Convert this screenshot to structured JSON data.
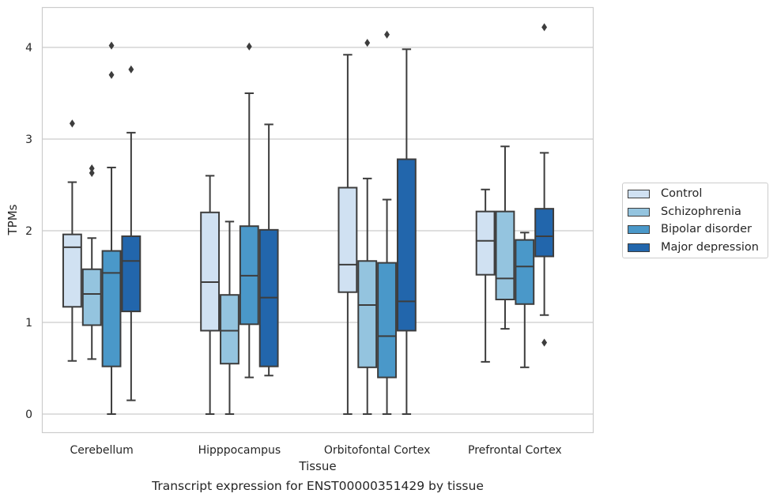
{
  "chart_data": {
    "type": "box",
    "title": "",
    "caption": "Transcript expression for ENST00000351429 by tissue",
    "xlabel": "Tissue",
    "ylabel": "TPMs",
    "ylim": [
      -0.2,
      4.45
    ],
    "yticks": [
      0,
      1,
      2,
      3,
      4
    ],
    "grid": "horizontal",
    "legend_position": "right",
    "categories": [
      "Cerebellum",
      "Hipppocampus",
      "Orbitofontal Cortex",
      "Prefrontal Cortex"
    ],
    "series": [
      {
        "name": "Control",
        "color": "#d0e1f2",
        "boxes": [
          {
            "whisker_low": 0.58,
            "q1": 1.17,
            "median": 1.82,
            "q3": 1.96,
            "whisker_high": 2.53,
            "outliers": [
              3.17
            ]
          },
          {
            "whisker_low": 0.0,
            "q1": 0.91,
            "median": 1.44,
            "q3": 2.2,
            "whisker_high": 2.6,
            "outliers": []
          },
          {
            "whisker_low": 0.0,
            "q1": 1.33,
            "median": 1.63,
            "q3": 2.47,
            "whisker_high": 3.92,
            "outliers": []
          },
          {
            "whisker_low": 0.57,
            "q1": 1.52,
            "median": 1.89,
            "q3": 2.21,
            "whisker_high": 2.45,
            "outliers": []
          }
        ]
      },
      {
        "name": "Schizophrenia",
        "color": "#94c4df",
        "boxes": [
          {
            "whisker_low": 0.6,
            "q1": 0.97,
            "median": 1.31,
            "q3": 1.58,
            "whisker_high": 1.92,
            "outliers": [
              2.63,
              2.68
            ]
          },
          {
            "whisker_low": 0.0,
            "q1": 0.55,
            "median": 0.91,
            "q3": 1.3,
            "whisker_high": 2.1,
            "outliers": []
          },
          {
            "whisker_low": 0.0,
            "q1": 0.51,
            "median": 1.19,
            "q3": 1.67,
            "whisker_high": 2.57,
            "outliers": [
              4.05
            ]
          },
          {
            "whisker_low": 0.93,
            "q1": 1.25,
            "median": 1.48,
            "q3": 2.21,
            "whisker_high": 2.92,
            "outliers": []
          }
        ]
      },
      {
        "name": "Bipolar disorder",
        "color": "#4a98c9",
        "boxes": [
          {
            "whisker_low": 0.0,
            "q1": 0.52,
            "median": 1.54,
            "q3": 1.78,
            "whisker_high": 2.69,
            "outliers": [
              3.7,
              4.02
            ]
          },
          {
            "whisker_low": 0.4,
            "q1": 0.98,
            "median": 1.51,
            "q3": 2.05,
            "whisker_high": 3.5,
            "outliers": [
              4.01
            ]
          },
          {
            "whisker_low": 0.0,
            "q1": 0.4,
            "median": 0.85,
            "q3": 1.65,
            "whisker_high": 2.34,
            "outliers": [
              4.14
            ]
          },
          {
            "whisker_low": 0.51,
            "q1": 1.2,
            "median": 1.61,
            "q3": 1.9,
            "whisker_high": 1.98,
            "outliers": []
          }
        ]
      },
      {
        "name": "Major depression",
        "color": "#2266ac",
        "boxes": [
          {
            "whisker_low": 0.15,
            "q1": 1.12,
            "median": 1.67,
            "q3": 1.94,
            "whisker_high": 3.07,
            "outliers": [
              3.76
            ]
          },
          {
            "whisker_low": 0.42,
            "q1": 0.52,
            "median": 1.27,
            "q3": 2.01,
            "whisker_high": 3.16,
            "outliers": []
          },
          {
            "whisker_low": 0.0,
            "q1": 0.91,
            "median": 1.23,
            "q3": 2.78,
            "whisker_high": 3.98,
            "outliers": []
          },
          {
            "whisker_low": 1.08,
            "q1": 1.72,
            "median": 1.94,
            "q3": 2.24,
            "whisker_high": 2.85,
            "outliers": [
              0.78,
              4.22
            ]
          }
        ]
      }
    ]
  }
}
